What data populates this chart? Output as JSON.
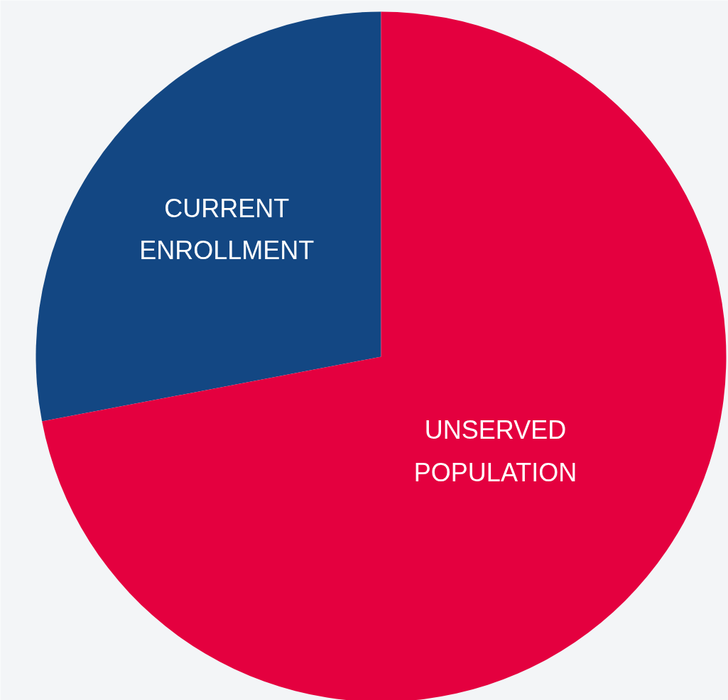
{
  "chart_data": {
    "type": "pie",
    "categories": [
      "CURRENT ENROLLMENT",
      "UNSERVED POPULATION"
    ],
    "values": [
      28,
      72
    ],
    "colors": [
      "#134783",
      "#e4003f"
    ]
  }
}
